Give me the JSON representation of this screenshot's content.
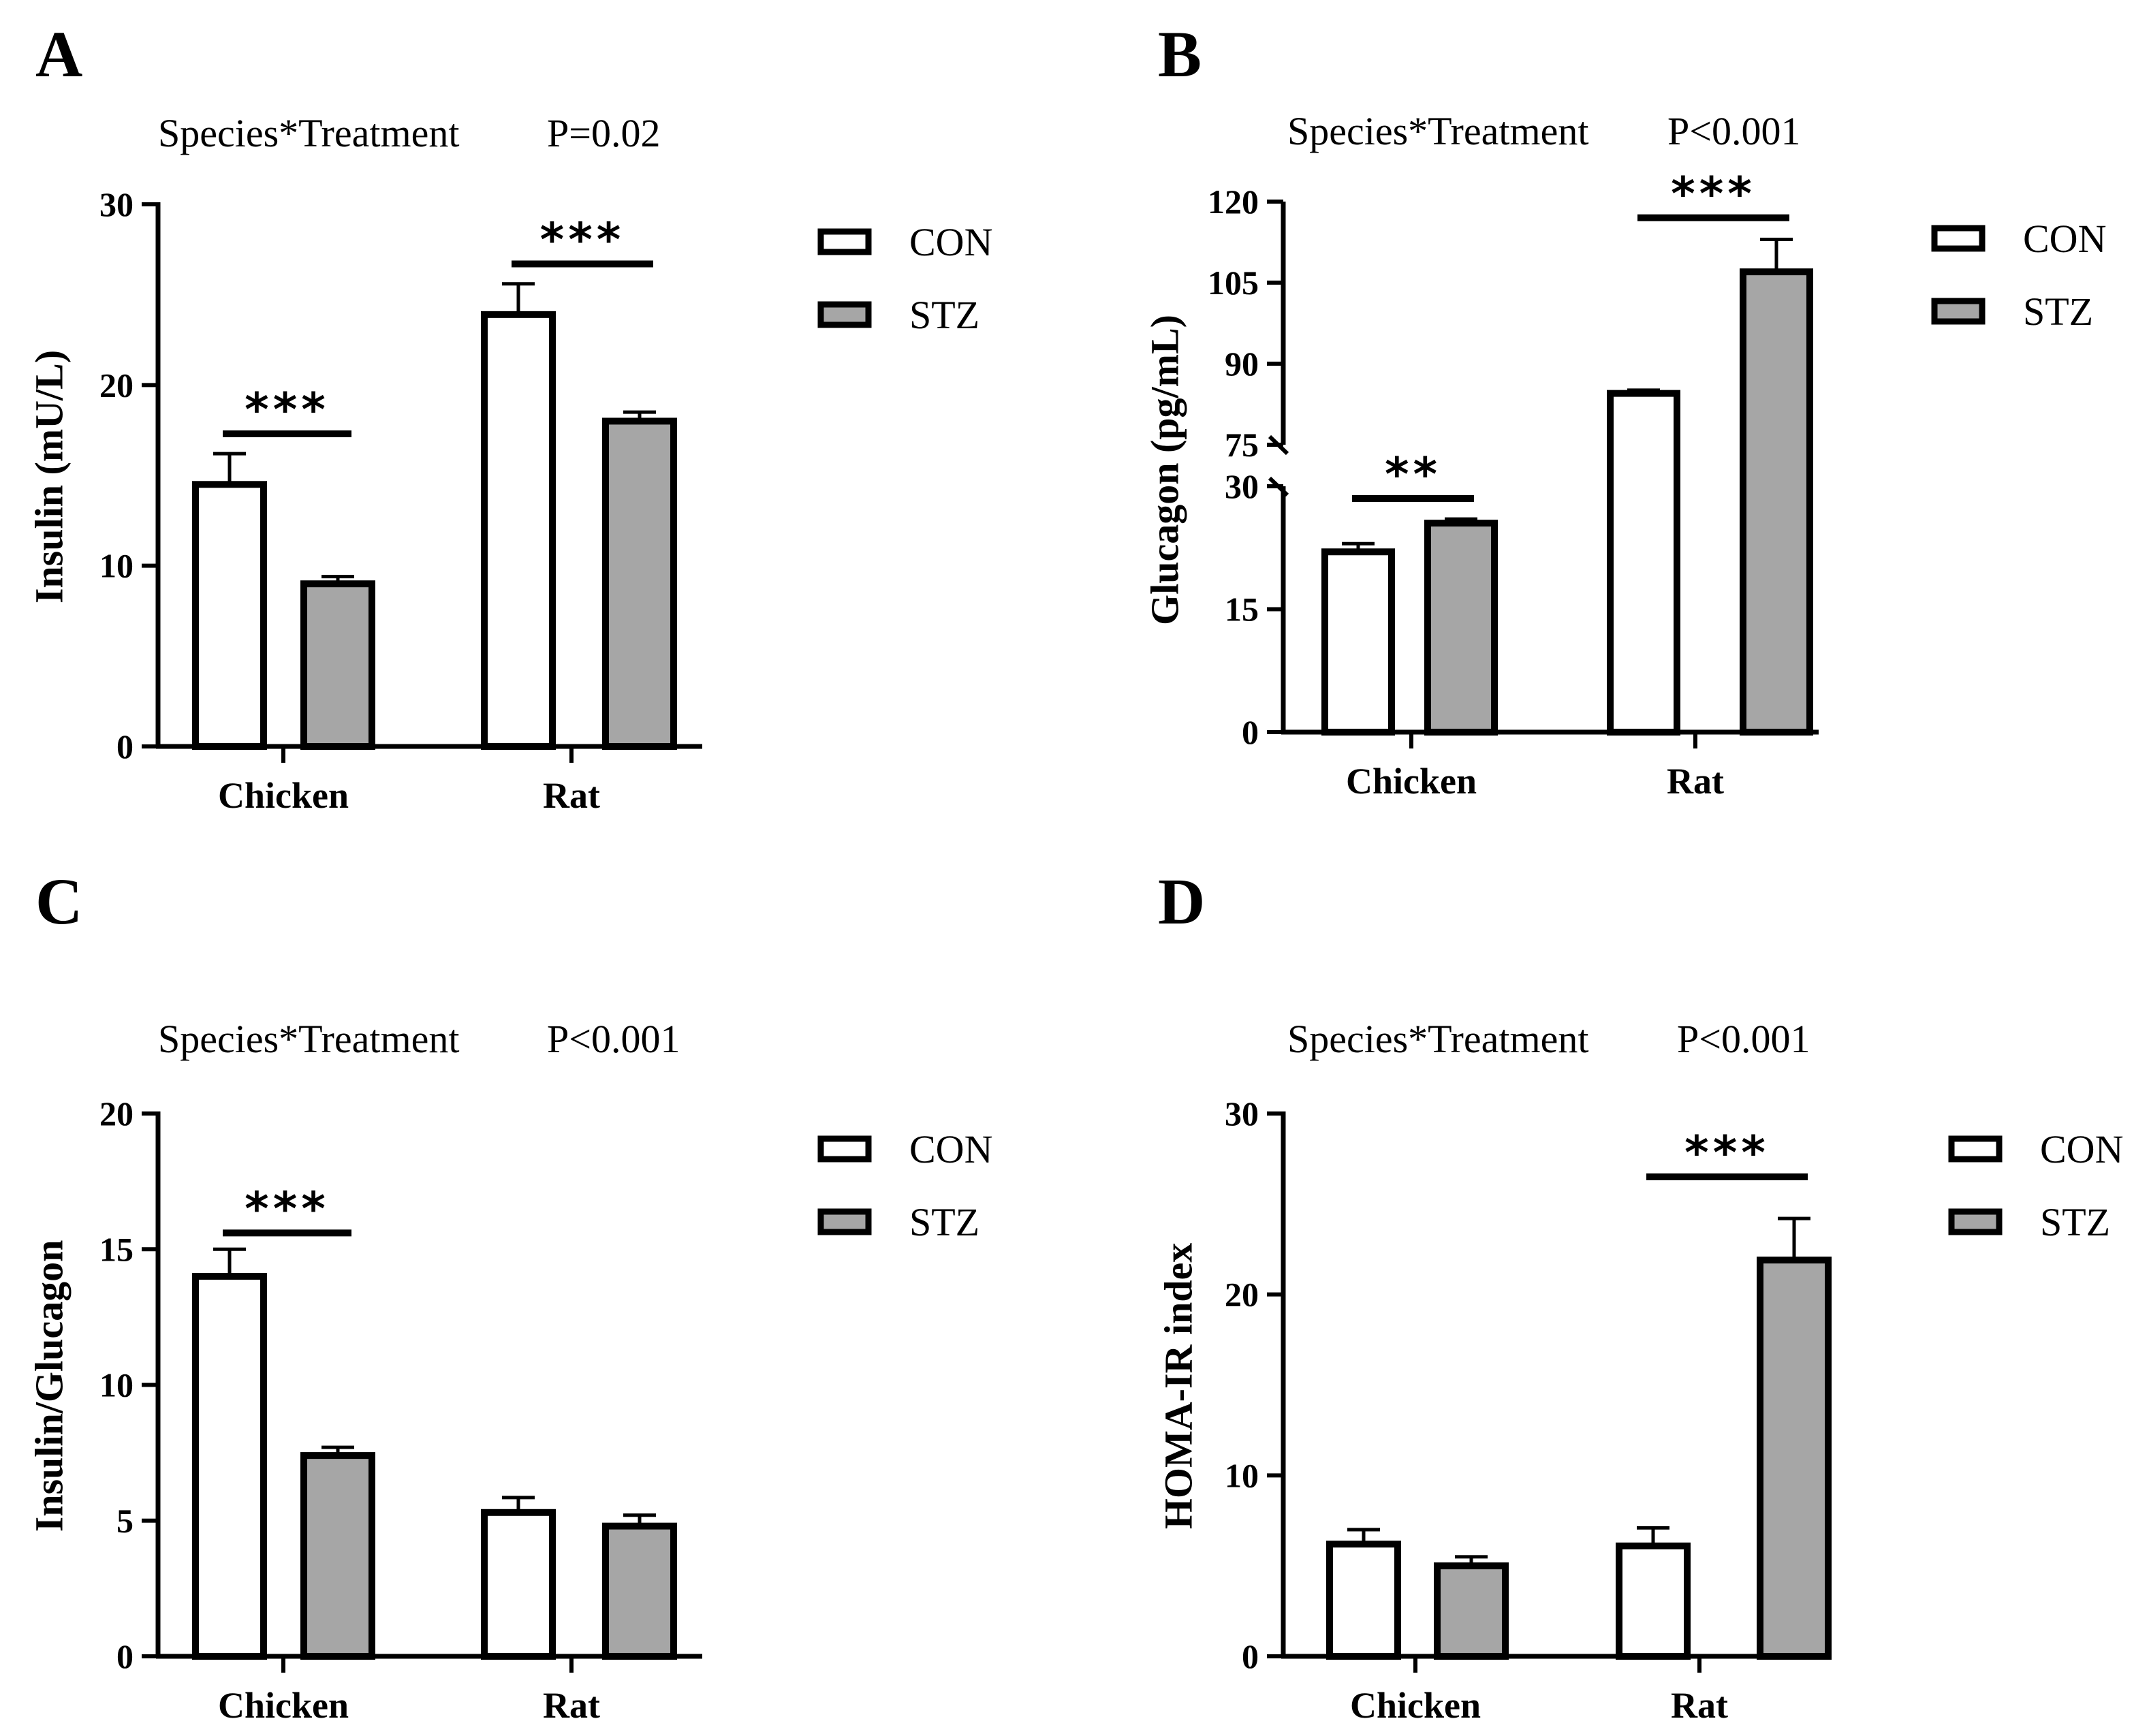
{
  "figure": {
    "series_labels": [
      "CON",
      "STZ"
    ],
    "series_colors": {
      "CON": "#ffffff",
      "STZ": "#a6a6a6"
    },
    "stroke_color": "#000000"
  },
  "chart_data": [
    {
      "panel": "A",
      "type": "bar",
      "title": "Species*Treatment",
      "interaction_p": "P=0.02",
      "categories": [
        "Chicken",
        "Rat"
      ],
      "ylabel": "Insulin (mU/L)",
      "ylim": [
        0,
        30
      ],
      "yticks": [
        0,
        10,
        20,
        30
      ],
      "series": [
        {
          "name": "CON",
          "values": [
            14.5,
            23.9
          ],
          "errors": [
            1.7,
            1.7
          ]
        },
        {
          "name": "STZ",
          "values": [
            9.0,
            18.0
          ],
          "errors": [
            0.4,
            0.5
          ]
        }
      ],
      "significance": [
        {
          "category": "Chicken",
          "label": "***",
          "y": 17.3
        },
        {
          "category": "Rat",
          "label": "***",
          "y": 26.7
        }
      ]
    },
    {
      "panel": "B",
      "type": "bar",
      "title": "Species*Treatment",
      "interaction_p": "P<0.001",
      "categories": [
        "Chicken",
        "Rat"
      ],
      "ylabel": "Glucagon (pg/mL)",
      "ylim": [
        0,
        120
      ],
      "axis_break": {
        "lower": [
          0,
          30
        ],
        "upper": [
          75,
          120
        ]
      },
      "yticks_lower": [
        0,
        15,
        30
      ],
      "yticks_upper": [
        75,
        90,
        105,
        120
      ],
      "series": [
        {
          "name": "CON",
          "values": [
            22.0,
            84.5
          ],
          "errors": [
            1.0,
            0.6
          ]
        },
        {
          "name": "STZ",
          "values": [
            25.5,
            107.0
          ],
          "errors": [
            0.5,
            6.0
          ]
        }
      ],
      "significance": [
        {
          "category": "Chicken",
          "label": "**",
          "y": 28.5
        },
        {
          "category": "Rat",
          "label": "***",
          "y": 117
        }
      ]
    },
    {
      "panel": "C",
      "type": "bar",
      "title": "Species*Treatment",
      "interaction_p": "P<0.001",
      "categories": [
        "Chicken",
        "Rat"
      ],
      "ylabel": "Insulin/Glucagon",
      "ylim": [
        0,
        20
      ],
      "yticks": [
        0,
        5,
        10,
        15,
        20
      ],
      "series": [
        {
          "name": "CON",
          "values": [
            14.0,
            5.3
          ],
          "errors": [
            1.0,
            0.55
          ]
        },
        {
          "name": "STZ",
          "values": [
            7.4,
            4.8
          ],
          "errors": [
            0.3,
            0.4
          ]
        }
      ],
      "significance": [
        {
          "category": "Chicken",
          "label": "***",
          "y": 15.6
        }
      ]
    },
    {
      "panel": "D",
      "type": "bar",
      "title": "Species*Treatment",
      "interaction_p": "P<0.001",
      "categories": [
        "Chicken",
        "Rat"
      ],
      "ylabel": "HOMA-IR index",
      "ylim": [
        0,
        30
      ],
      "yticks": [
        0,
        10,
        20,
        30
      ],
      "series": [
        {
          "name": "CON",
          "values": [
            6.2,
            6.1
          ],
          "errors": [
            0.8,
            1.0
          ]
        },
        {
          "name": "STZ",
          "values": [
            5.0,
            21.9
          ],
          "errors": [
            0.5,
            2.3
          ]
        }
      ],
      "significance": [
        {
          "category": "Rat",
          "label": "***",
          "y": 26.5
        }
      ]
    }
  ]
}
